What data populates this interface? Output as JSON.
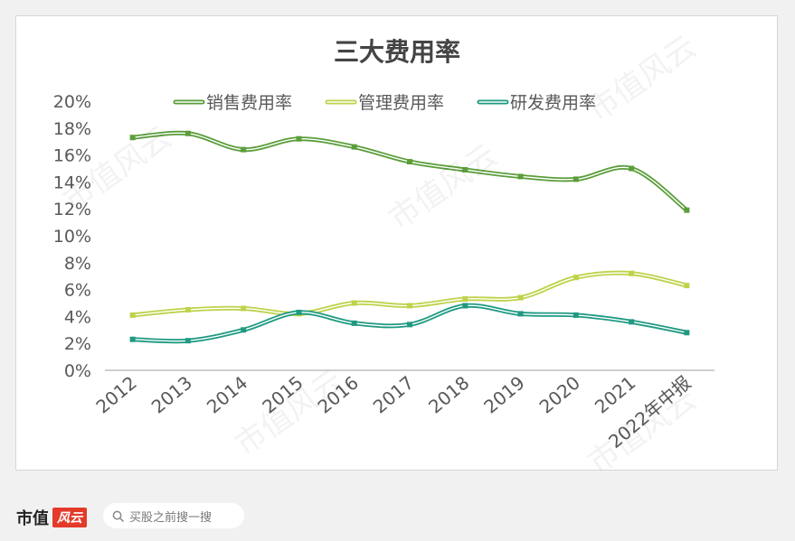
{
  "chart_data": {
    "type": "line",
    "title": "三大费用率",
    "categories": [
      "2012",
      "2013",
      "2014",
      "2015",
      "2016",
      "2017",
      "2018",
      "2019",
      "2020",
      "2021",
      "2022年中报"
    ],
    "yticks": [
      "0%",
      "2%",
      "4%",
      "6%",
      "8%",
      "10%",
      "12%",
      "14%",
      "16%",
      "18%",
      "20%"
    ],
    "ylim": [
      0,
      20
    ],
    "legend_position": "top",
    "grid": false,
    "series": [
      {
        "name": "销售费用率",
        "color": "#5a9e3a",
        "values": [
          17.3,
          17.6,
          16.4,
          17.2,
          16.6,
          15.5,
          14.9,
          14.4,
          14.2,
          15.0,
          11.9
        ]
      },
      {
        "name": "管理费用率",
        "color": "#bfd24a",
        "values": [
          4.1,
          4.5,
          4.6,
          4.2,
          5.0,
          4.8,
          5.3,
          5.4,
          6.9,
          7.2,
          6.3
        ]
      },
      {
        "name": "研发费用率",
        "color": "#1f9a82",
        "values": [
          2.3,
          2.2,
          3.0,
          4.3,
          3.5,
          3.4,
          4.8,
          4.2,
          4.1,
          3.6,
          2.8
        ]
      }
    ]
  },
  "watermark": "市值风云",
  "footer": {
    "brand": "市值",
    "brand_logo": "风云",
    "search_placeholder": "买股之前搜一搜",
    "search_icon": "search-icon"
  }
}
